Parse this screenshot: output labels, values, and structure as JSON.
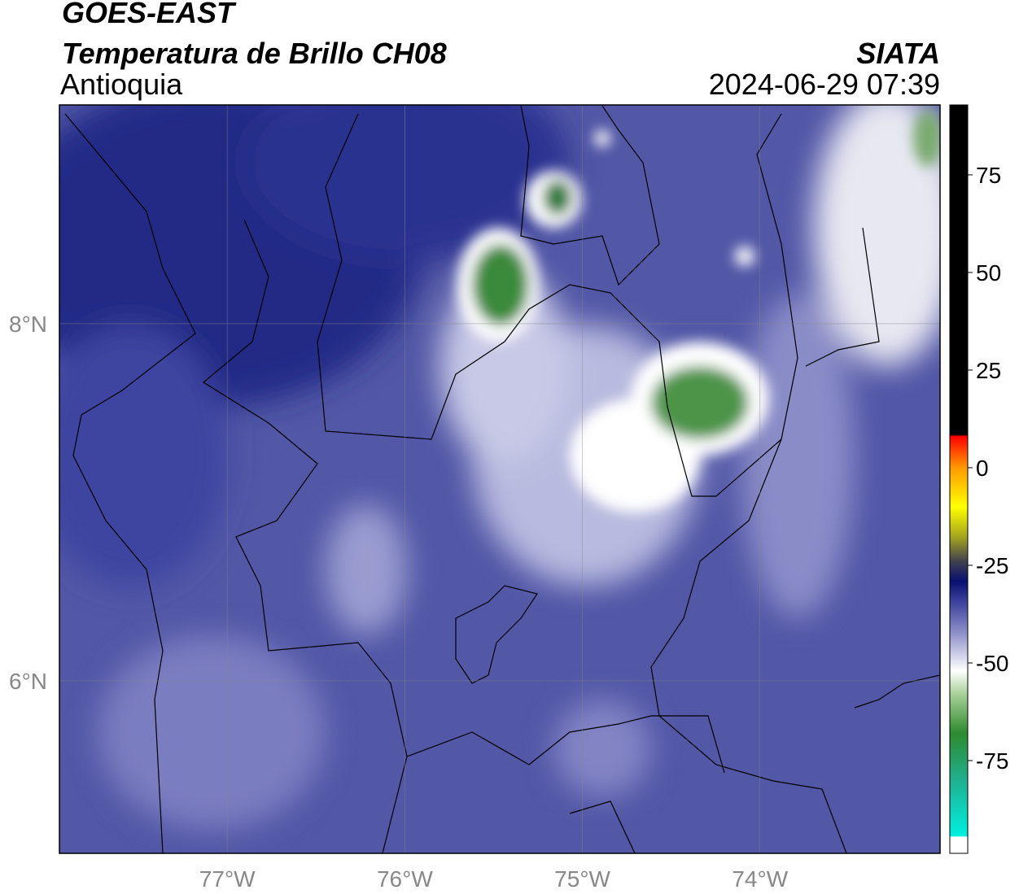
{
  "map": {
    "title": "GOES-EAST",
    "subtitle": "Temperatura de Brillo CH08",
    "region": "Antioquia",
    "source": "SIATA",
    "datetime": "2024-06-29 07:39",
    "xlim": [
      -77.945,
      -72.986
    ],
    "ylim": [
      5.034,
      9.225
    ],
    "xticks": [
      {
        "value": -77,
        "label": "77°W"
      },
      {
        "value": -76,
        "label": "76°W"
      },
      {
        "value": -75,
        "label": "75°W"
      },
      {
        "value": -74,
        "label": "74°W"
      }
    ],
    "yticks": [
      {
        "value": 8,
        "label": "8°N"
      },
      {
        "value": 6,
        "label": "6°N"
      }
    ],
    "grid": true,
    "colorbar": {
      "lim": [
        -98.75,
        92.9
      ],
      "ticks": [
        75,
        50,
        25,
        0,
        -25,
        -50,
        -75
      ],
      "stops": [
        {
          "value": -98.75,
          "color": "#ffffff"
        },
        {
          "value": -94.5,
          "color": "#ffffff"
        },
        {
          "value": -94.4,
          "color": "#00f0e0"
        },
        {
          "value": -80,
          "color": "#20b090"
        },
        {
          "value": -68,
          "color": "#2e8a2e"
        },
        {
          "value": -58,
          "color": "#a8d098"
        },
        {
          "value": -52,
          "color": "#ffffff"
        },
        {
          "value": -42,
          "color": "#8a8cc8"
        },
        {
          "value": -34,
          "color": "#3a3e9a"
        },
        {
          "value": -29,
          "color": "#0a1070"
        },
        {
          "value": -24,
          "color": "#404050"
        },
        {
          "value": -18,
          "color": "#a0a020"
        },
        {
          "value": -10,
          "color": "#ffff00"
        },
        {
          "value": 0,
          "color": "#ff9900"
        },
        {
          "value": 8,
          "color": "#ff0000"
        },
        {
          "value": 8.5,
          "color": "#000000"
        },
        {
          "value": 92.9,
          "color": "#000000"
        }
      ]
    }
  }
}
